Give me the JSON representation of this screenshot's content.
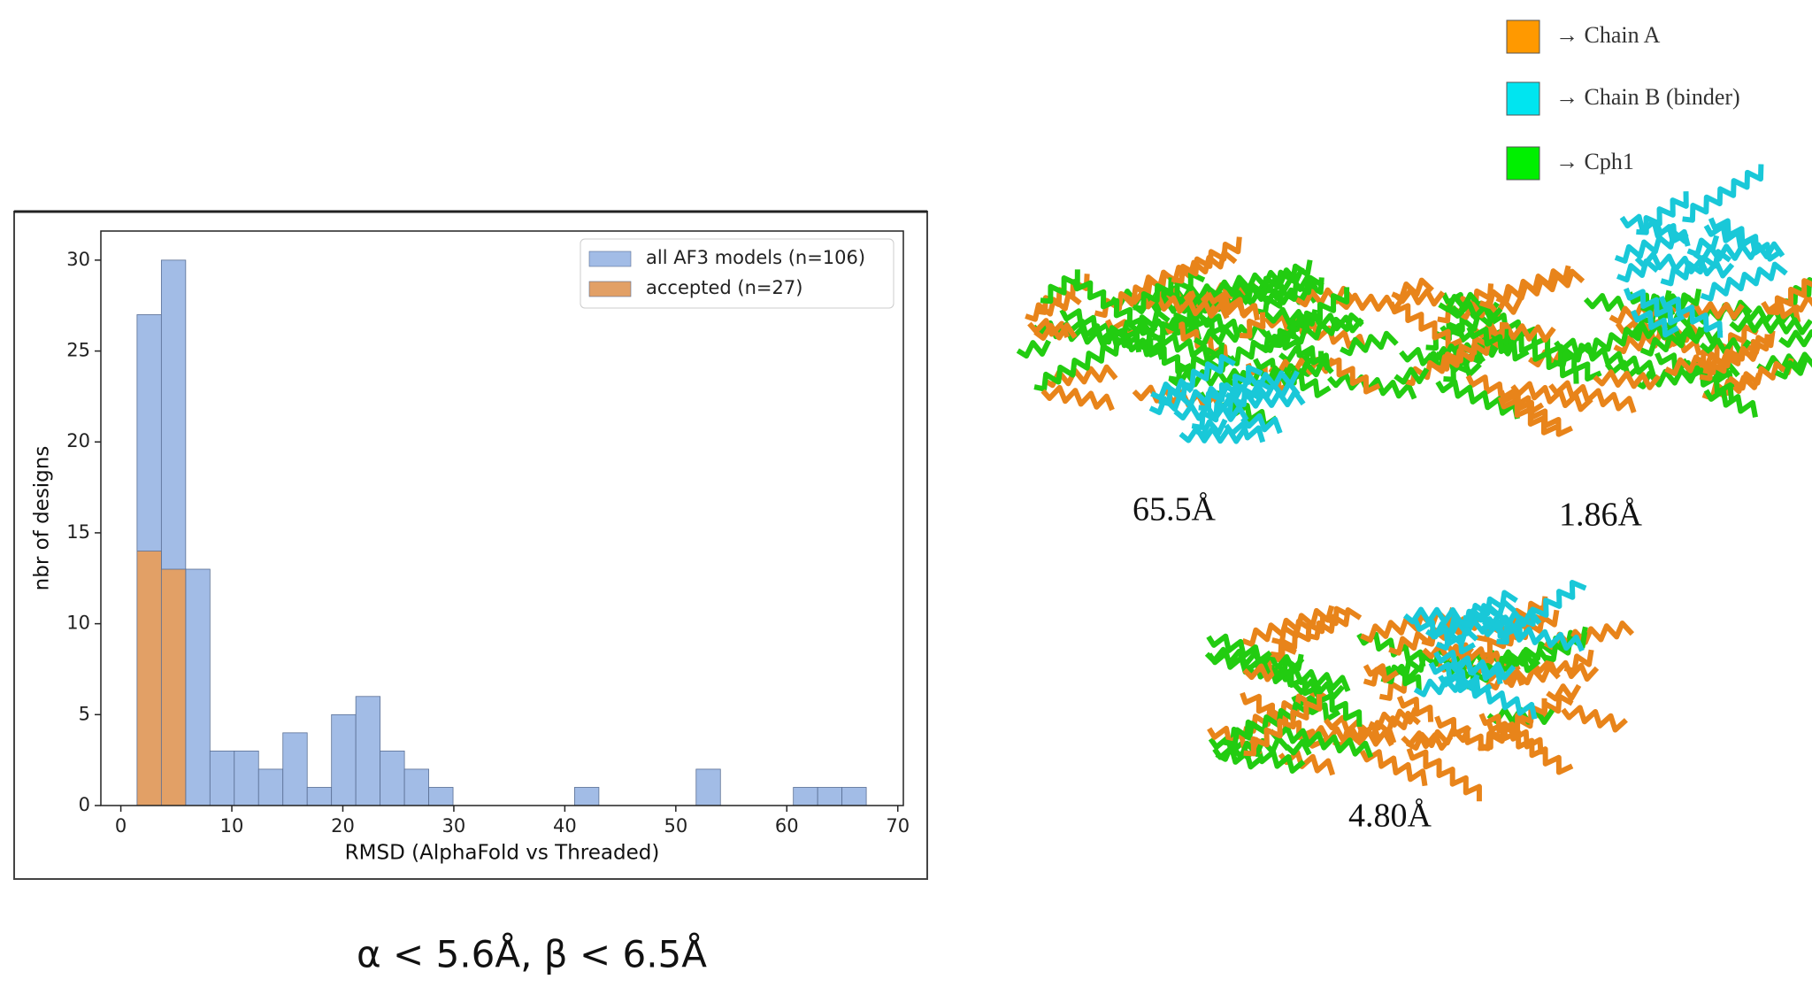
{
  "chart_data": {
    "type": "histogram",
    "xlabel": "RMSD (AlphaFold vs Threaded)",
    "ylabel": "nbr of designs",
    "bins": [
      1.46,
      3.65,
      5.84,
      8.03,
      10.22,
      12.41,
      14.6,
      16.79,
      18.98,
      21.17,
      23.36,
      25.55,
      27.74,
      29.93,
      32.12,
      34.31,
      36.5,
      38.69,
      40.88,
      43.07,
      45.26,
      47.45,
      49.64,
      51.83,
      54.02,
      56.21,
      58.4,
      60.59,
      62.78,
      64.97,
      67.16
    ],
    "series": [
      {
        "name": "all AF3 models (n=106)",
        "color": "#a2bce6",
        "values": [
          27,
          30,
          13,
          3,
          3,
          2,
          4,
          1,
          5,
          6,
          3,
          2,
          1,
          0,
          0,
          0,
          0,
          0,
          1,
          0,
          0,
          0,
          0,
          2,
          0,
          0,
          0,
          1,
          1,
          1
        ]
      },
      {
        "name": "accepted (n=27)",
        "color": "#e2a066",
        "values": [
          14,
          13,
          0,
          0,
          0,
          0,
          0,
          0,
          0,
          0,
          0,
          0,
          0,
          0,
          0,
          0,
          0,
          0,
          0,
          0,
          0,
          0,
          0,
          0,
          0,
          0,
          0,
          0,
          0,
          0
        ]
      }
    ],
    "xlim": [
      -1.8,
      70.5
    ],
    "ylim": [
      0,
      31.6
    ],
    "xticks": [
      0,
      10,
      20,
      30,
      40,
      50,
      60,
      70
    ],
    "yticks": [
      0,
      5,
      10,
      15,
      20,
      25,
      30
    ],
    "legend": "upper right"
  },
  "chain_legend": [
    {
      "label": "→ Chain A",
      "color": "#ff9900"
    },
    {
      "label": "→ Chain B (binder)",
      "color": "#00e5f0"
    },
    {
      "label": "→ Cph1",
      "color": "#00f000"
    }
  ],
  "structures": [
    {
      "rmsd_label": "65.5Å"
    },
    {
      "rmsd_label": "1.86Å"
    },
    {
      "rmsd_label": "4.80Å"
    }
  ],
  "caption": "α < 5.6Å, β < 6.5Å"
}
